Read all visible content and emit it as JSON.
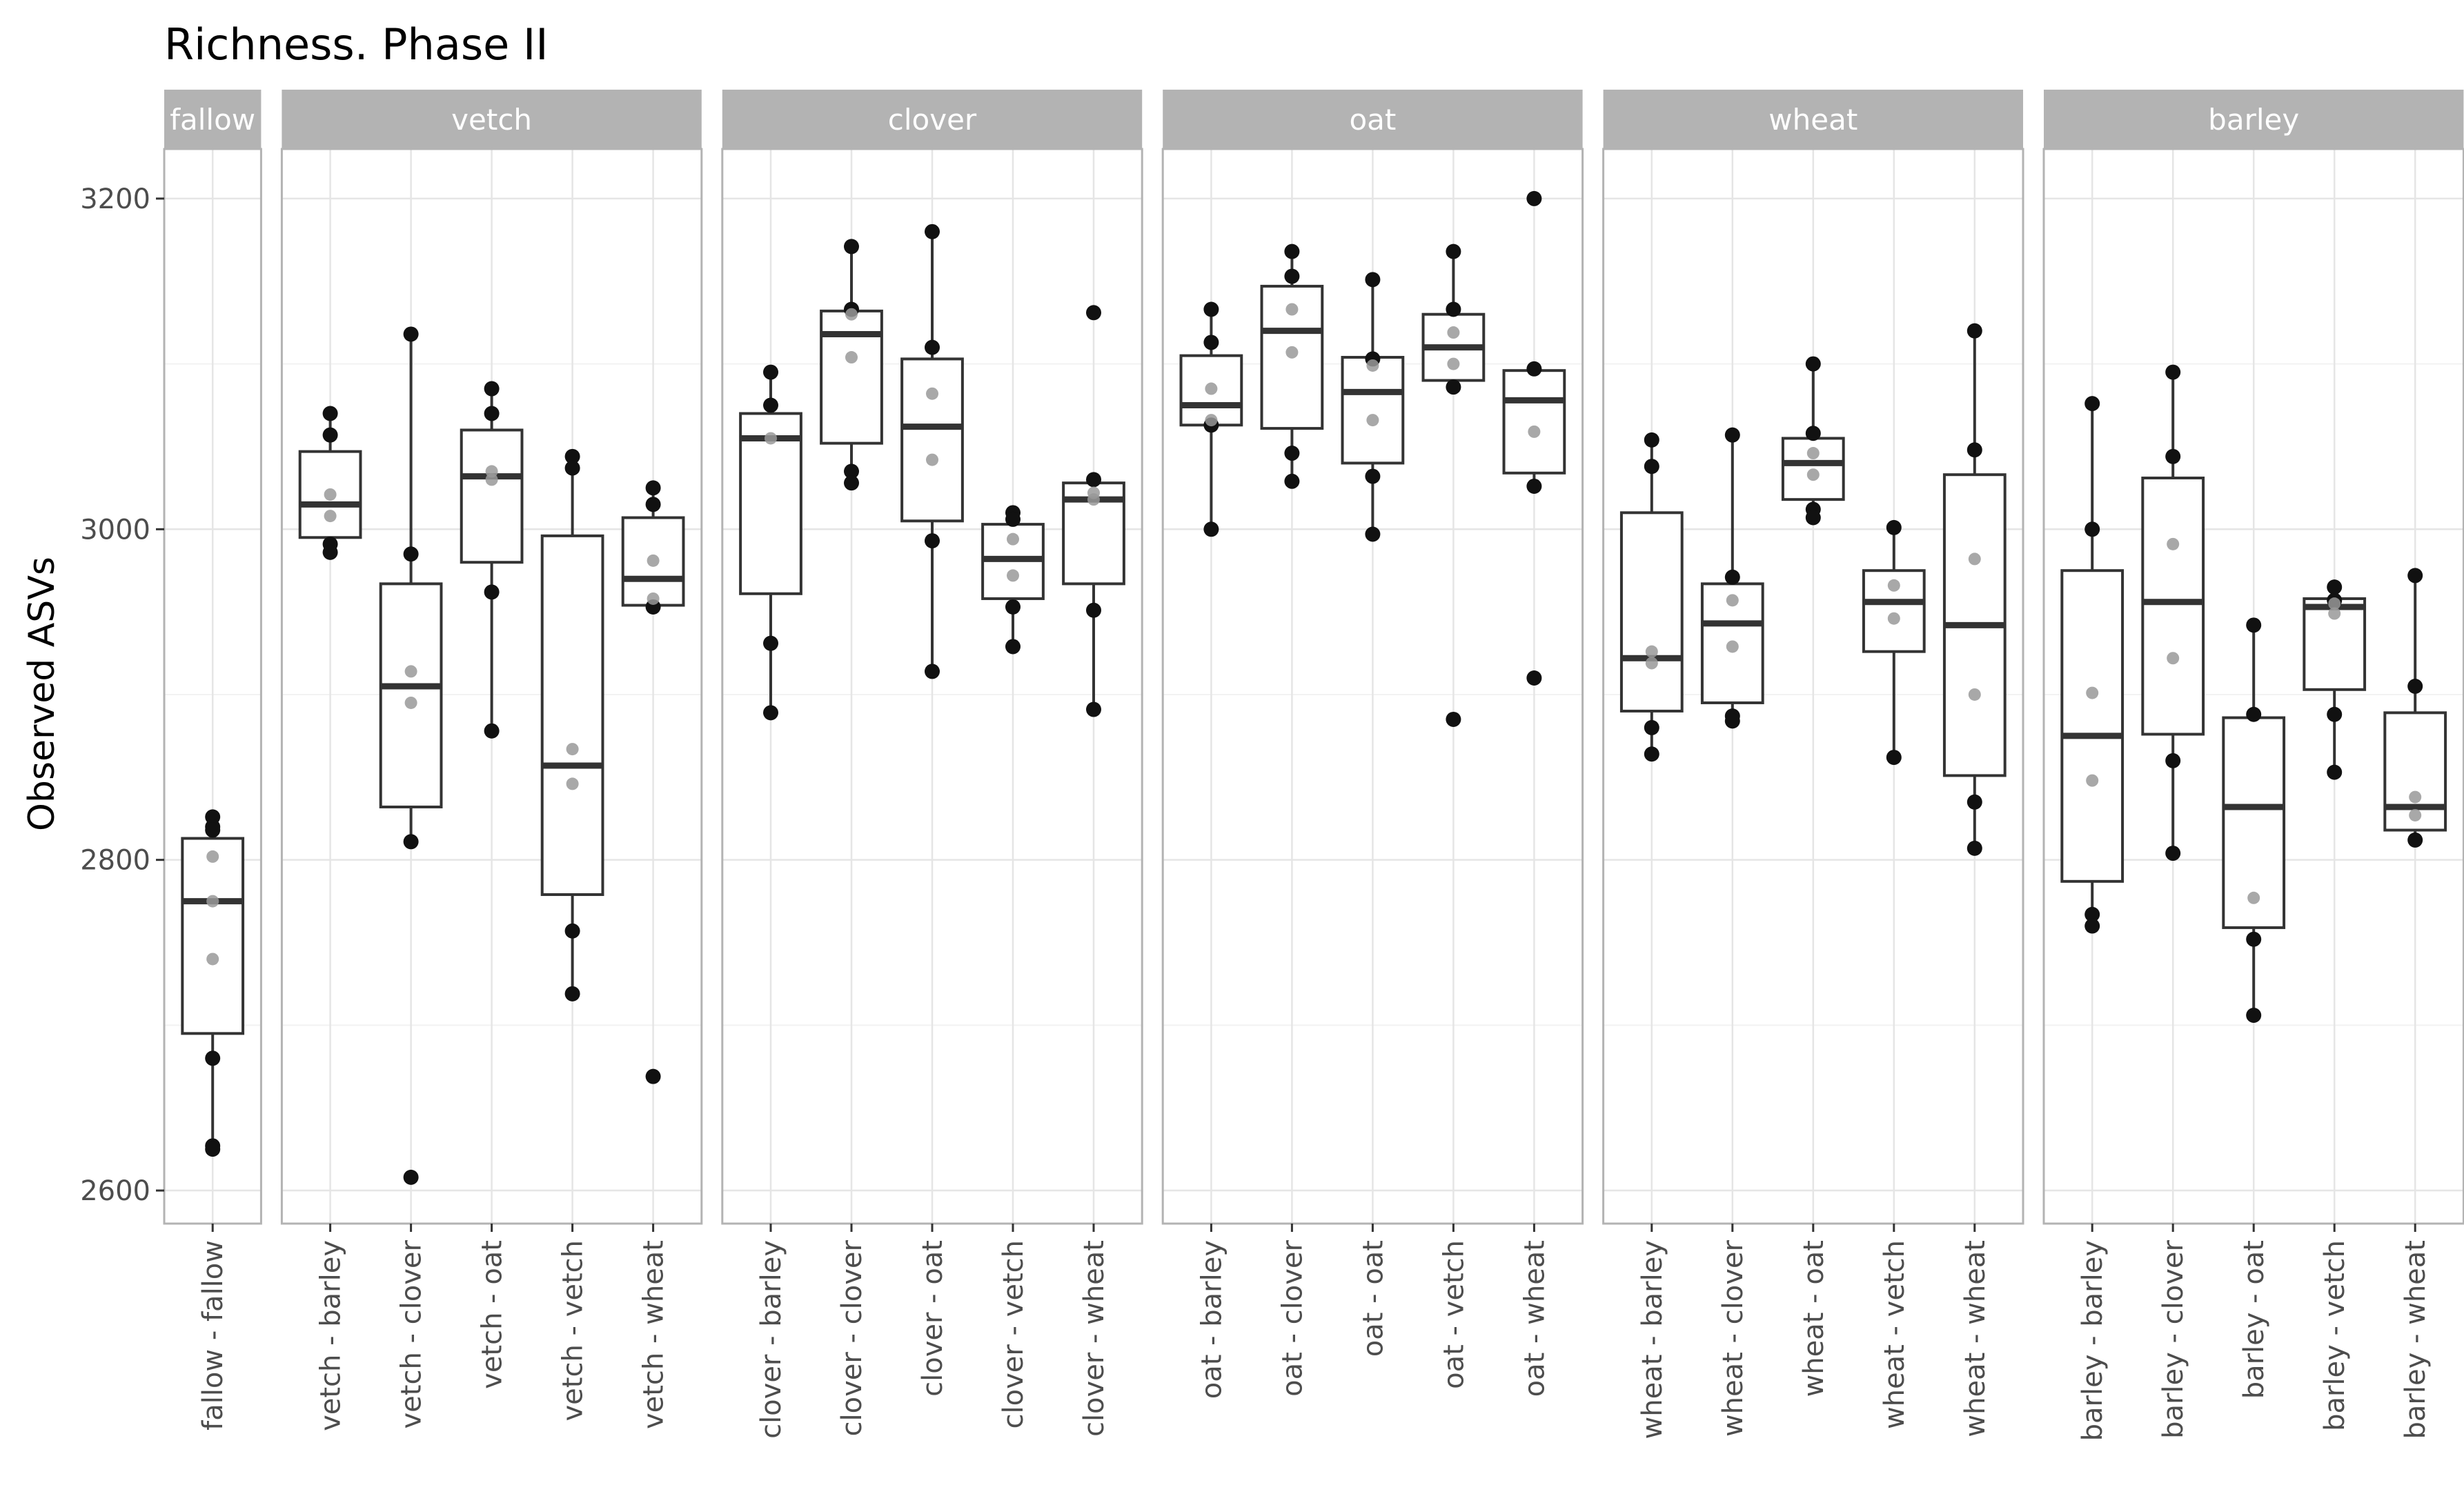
{
  "chart_data": {
    "type": "boxplot",
    "title": "Richness. Phase II",
    "xlabel": "",
    "ylabel": "Observed ASVs",
    "ylim": [
      2580,
      3230
    ],
    "yticks": [
      2600,
      2800,
      3000,
      3200
    ],
    "grid": true,
    "colors": {
      "strip_fill": "#b3b3b3",
      "strip_text": "#ffffff",
      "grid_major": "#e5e5e5",
      "grid_minor": "#f2f2f2",
      "panel_border": "#b3b3b3",
      "box_line": "#333333",
      "outer_point": "#111111",
      "inner_point": "#999999"
    },
    "facets": [
      {
        "strip": "fallow",
        "groups": [
          {
            "label": "fallow - fallow",
            "q1": 2695,
            "median": 2775,
            "q3": 2813,
            "lower": 2625,
            "upper": 2826,
            "points_outer": [
              2826,
              2820,
              2818,
              2680,
              2627,
              2625
            ],
            "points_inner": [
              2802,
              2775,
              2740
            ]
          }
        ]
      },
      {
        "strip": "vetch",
        "groups": [
          {
            "label": "vetch - barley",
            "q1": 2995,
            "median": 3015,
            "q3": 3047,
            "lower": 2986,
            "upper": 3070,
            "points_outer": [
              3070,
              3057,
              2991,
              2986
            ],
            "points_inner": [
              3021,
              3008
            ]
          },
          {
            "label": "vetch - clover",
            "q1": 2832,
            "median": 2905,
            "q3": 2967,
            "lower": 2811,
            "upper": 3118,
            "points_outer": [
              3118,
              2985,
              2811,
              2608
            ],
            "points_inner": [
              2914,
              2895
            ]
          },
          {
            "label": "vetch - oat",
            "q1": 2980,
            "median": 3032,
            "q3": 3060,
            "lower": 2878,
            "upper": 3085,
            "points_outer": [
              3085,
              3070,
              2962,
              2878
            ],
            "points_inner": [
              3035,
              3030
            ]
          },
          {
            "label": "vetch - vetch",
            "q1": 2779,
            "median": 2857,
            "q3": 2996,
            "lower": 2719,
            "upper": 3044,
            "points_outer": [
              3044,
              3037,
              2757,
              2719
            ],
            "points_inner": [
              2867,
              2846
            ]
          },
          {
            "label": "vetch - wheat",
            "q1": 2954,
            "median": 2970,
            "q3": 3007,
            "lower": 2953,
            "upper": 3025,
            "points_outer": [
              3025,
              3015,
              2953,
              2669
            ],
            "points_inner": [
              2981,
              2958
            ]
          }
        ]
      },
      {
        "strip": "clover",
        "groups": [
          {
            "label": "clover - barley",
            "q1": 2961,
            "median": 3055,
            "q3": 3070,
            "lower": 2889,
            "upper": 3095,
            "points_outer": [
              3095,
              3075,
              2931,
              2889
            ],
            "points_inner": [
              3055
            ]
          },
          {
            "label": "clover - clover",
            "q1": 3052,
            "median": 3118,
            "q3": 3132,
            "lower": 3028,
            "upper": 3171,
            "points_outer": [
              3171,
              3133,
              3035,
              3028
            ],
            "points_inner": [
              3130,
              3104
            ]
          },
          {
            "label": "clover - oat",
            "q1": 3005,
            "median": 3062,
            "q3": 3103,
            "lower": 2914,
            "upper": 3180,
            "points_outer": [
              3180,
              3110,
              2993,
              2914
            ],
            "points_inner": [
              3082,
              3042
            ]
          },
          {
            "label": "clover - vetch",
            "q1": 2958,
            "median": 2982,
            "q3": 3003,
            "lower": 2929,
            "upper": 3010,
            "points_outer": [
              3010,
              3006,
              2953,
              2929
            ],
            "points_inner": [
              2994,
              2972
            ]
          },
          {
            "label": "clover - wheat",
            "q1": 2967,
            "median": 3018,
            "q3": 3028,
            "lower": 2891,
            "upper": 3030,
            "points_outer": [
              3131,
              3030,
              2951,
              2891
            ],
            "points_inner": [
              3022,
              3018
            ]
          }
        ]
      },
      {
        "strip": "oat",
        "groups": [
          {
            "label": "oat - barley",
            "q1": 3063,
            "median": 3075,
            "q3": 3105,
            "lower": 3000,
            "upper": 3133,
            "points_outer": [
              3133,
              3113,
              3063,
              3000
            ],
            "points_inner": [
              3085,
              3066
            ]
          },
          {
            "label": "oat - clover",
            "q1": 3061,
            "median": 3120,
            "q3": 3147,
            "lower": 3029,
            "upper": 3168,
            "points_outer": [
              3168,
              3153,
              3046,
              3029
            ],
            "points_inner": [
              3133,
              3107
            ]
          },
          {
            "label": "oat - oat",
            "q1": 3040,
            "median": 3083,
            "q3": 3104,
            "lower": 2997,
            "upper": 3151,
            "points_outer": [
              3151,
              3103,
              3032,
              2997
            ],
            "points_inner": [
              3099,
              3066
            ]
          },
          {
            "label": "oat - vetch",
            "q1": 3090,
            "median": 3110,
            "q3": 3130,
            "lower": 3086,
            "upper": 3168,
            "points_outer": [
              3168,
              3133,
              3086,
              2885
            ],
            "points_inner": [
              3119,
              3100
            ]
          },
          {
            "label": "oat - wheat",
            "q1": 3034,
            "median": 3078,
            "q3": 3096,
            "lower": 3026,
            "upper": 3098,
            "points_outer": [
              3200,
              3097,
              3026,
              2910
            ],
            "points_inner": [
              3059
            ]
          }
        ]
      },
      {
        "strip": "wheat",
        "groups": [
          {
            "label": "wheat - barley",
            "q1": 2890,
            "median": 2922,
            "q3": 3010,
            "lower": 2864,
            "upper": 3054,
            "points_outer": [
              3054,
              3038,
              2880,
              2864
            ],
            "points_inner": [
              2926,
              2919
            ]
          },
          {
            "label": "wheat - clover",
            "q1": 2895,
            "median": 2943,
            "q3": 2967,
            "lower": 2884,
            "upper": 3057,
            "points_outer": [
              3057,
              2971,
              2887,
              2884
            ],
            "points_inner": [
              2957,
              2929
            ]
          },
          {
            "label": "wheat - oat",
            "q1": 3018,
            "median": 3040,
            "q3": 3055,
            "lower": 3007,
            "upper": 3100,
            "points_outer": [
              3100,
              3058,
              3012,
              3007
            ],
            "points_inner": [
              3046,
              3033
            ]
          },
          {
            "label": "wheat - vetch",
            "q1": 2926,
            "median": 2956,
            "q3": 2975,
            "lower": 2862,
            "upper": 3001,
            "points_outer": [
              3001,
              2862
            ],
            "points_inner": [
              2966,
              2946
            ]
          },
          {
            "label": "wheat - wheat",
            "q1": 2851,
            "median": 2942,
            "q3": 3033,
            "lower": 2807,
            "upper": 3120,
            "points_outer": [
              3120,
              3048,
              2835,
              2807
            ],
            "points_inner": [
              2982,
              2900
            ]
          }
        ]
      },
      {
        "strip": "barley",
        "groups": [
          {
            "label": "barley - barley",
            "q1": 2787,
            "median": 2875,
            "q3": 2975,
            "lower": 2760,
            "upper": 3076,
            "points_outer": [
              3076,
              3000,
              2767,
              2760
            ],
            "points_inner": [
              2901,
              2848
            ]
          },
          {
            "label": "barley - clover",
            "q1": 2876,
            "median": 2956,
            "q3": 3031,
            "lower": 2804,
            "upper": 3095,
            "points_outer": [
              3095,
              3044,
              2860,
              2804
            ],
            "points_inner": [
              2991,
              2922
            ]
          },
          {
            "label": "barley - oat",
            "q1": 2759,
            "median": 2832,
            "q3": 2886,
            "lower": 2706,
            "upper": 2942,
            "points_outer": [
              2942,
              2888,
              2752,
              2706
            ],
            "points_inner": [
              2777
            ]
          },
          {
            "label": "barley - vetch",
            "q1": 2903,
            "median": 2953,
            "q3": 2958,
            "lower": 2853,
            "upper": 2965,
            "points_outer": [
              2965,
              2957,
              2888,
              2853
            ],
            "points_inner": [
              2955,
              2949
            ]
          },
          {
            "label": "barley - wheat",
            "q1": 2818,
            "median": 2832,
            "q3": 2889,
            "lower": 2812,
            "upper": 2972,
            "points_outer": [
              2972,
              2905,
              2812
            ],
            "points_inner": [
              2838,
              2827
            ]
          }
        ]
      }
    ]
  }
}
